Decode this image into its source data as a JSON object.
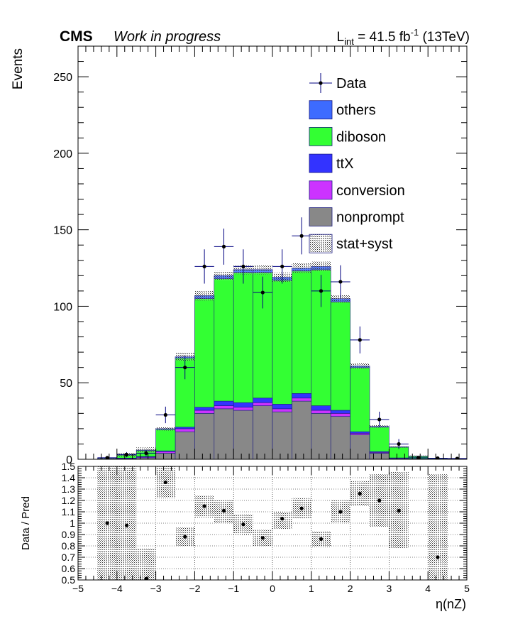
{
  "header": {
    "experiment": "CMS",
    "status": "Work in progress",
    "lumi_prefix": "L",
    "lumi_sub": "int",
    "lumi_value": " = 41.5 fb",
    "lumi_exp": "-1",
    "lumi_energy": " (13TeV)"
  },
  "legend": {
    "entries": [
      {
        "key": "data",
        "label": "Data",
        "color": "#000080"
      },
      {
        "key": "others",
        "label": "others",
        "color": "#3d6bff"
      },
      {
        "key": "diboson",
        "label": "diboson",
        "color": "#33ff33"
      },
      {
        "key": "ttX",
        "label": "ttX",
        "color": "#3333ff"
      },
      {
        "key": "conversion",
        "label": "conversion",
        "color": "#cc33ff"
      },
      {
        "key": "nonprompt",
        "label": "nonprompt",
        "color": "#888888"
      },
      {
        "key": "statsyst",
        "label": "stat+syst",
        "color": "#555555"
      }
    ]
  },
  "chart_data": [
    {
      "type": "bar",
      "stacked": true,
      "ylabel": "Events",
      "xlim": [
        -5,
        5
      ],
      "ylim": [
        0,
        270
      ],
      "y_ticks": [
        0,
        50,
        100,
        150,
        200,
        250
      ],
      "bin_edges": [
        -5,
        -4.5,
        -4,
        -3.5,
        -3,
        -2.5,
        -2,
        -1.5,
        -1,
        -0.5,
        0,
        0.5,
        1,
        1.5,
        2,
        2.5,
        3,
        3.5,
        4,
        4.5,
        5
      ],
      "series": [
        {
          "name": "nonprompt",
          "color": "#888888",
          "values": [
            0,
            0,
            0.5,
            1,
            4,
            18,
            30,
            33,
            32,
            35,
            31,
            38,
            30,
            28,
            16,
            4,
            0.5,
            0.2,
            0,
            0
          ]
        },
        {
          "name": "conversion",
          "color": "#cc33ff",
          "values": [
            0,
            0,
            0.2,
            0.5,
            1,
            2,
            2,
            2,
            2,
            2,
            2,
            2,
            2,
            2,
            1,
            0.5,
            0.2,
            0.1,
            0,
            0
          ]
        },
        {
          "name": "ttX",
          "color": "#3333ff",
          "values": [
            0,
            0,
            0.1,
            0.3,
            0.5,
            1,
            2,
            3,
            3,
            3,
            3,
            3,
            3,
            2,
            1,
            0.5,
            0.2,
            0.1,
            0,
            0
          ]
        },
        {
          "name": "diboson",
          "color": "#33ff33",
          "values": [
            0,
            0.5,
            2,
            4,
            14,
            45,
            71,
            80,
            85,
            82,
            81,
            80,
            89,
            71,
            42,
            16,
            7,
            1.5,
            0.5,
            0.3
          ]
        },
        {
          "name": "others",
          "color": "#3d6bff",
          "values": [
            0,
            0.1,
            0.2,
            0.2,
            0.5,
            1,
            2,
            2,
            2,
            2,
            2,
            2,
            2,
            2,
            1,
            0.5,
            0.3,
            0.2,
            0.1,
            0
          ]
        }
      ],
      "uncertainty": {
        "name": "stat+syst",
        "rel": [
          0.5,
          0.45,
          0.4,
          0.3,
          0.06,
          0.04,
          0.03,
          0.025,
          0.025,
          0.025,
          0.025,
          0.025,
          0.025,
          0.025,
          0.03,
          0.04,
          0.06,
          0.15,
          0.4,
          0.5
        ]
      },
      "data": {
        "name": "Data",
        "x": [
          -4.25,
          -3.75,
          -3.25,
          -2.75,
          -2.25,
          -1.75,
          -1.25,
          -0.75,
          -0.25,
          0.25,
          0.75,
          1.25,
          1.75,
          2.25,
          2.75,
          3.25,
          3.75,
          4.25,
          4.75
        ],
        "y": [
          1,
          3,
          4,
          29,
          60,
          126,
          139,
          126,
          109,
          126,
          146,
          110,
          116,
          78,
          26,
          10,
          1,
          0.7,
          0.5
        ],
        "err": [
          1,
          1.7,
          2,
          5.4,
          7.7,
          11.2,
          11.8,
          11.2,
          10.4,
          11.2,
          12.1,
          10.5,
          10.8,
          8.8,
          5.1,
          3.2,
          1,
          0.8,
          0.7
        ]
      }
    },
    {
      "type": "scatter",
      "ylabel": "Data / Pred",
      "xlabel": "η(nZ)",
      "xlim": [
        -5,
        5
      ],
      "ylim": [
        0.5,
        1.5
      ],
      "x_ticks": [
        -5,
        -4,
        -3,
        -2,
        -1,
        0,
        1,
        2,
        3,
        4,
        5
      ],
      "y_ticks": [
        0.5,
        0.6,
        0.7,
        0.8,
        0.9,
        1,
        1.1,
        1.2,
        1.3,
        1.4,
        1.5
      ],
      "grid": true,
      "points": {
        "x": [
          -4.25,
          -3.75,
          -3.25,
          -2.75,
          -2.25,
          -1.75,
          -1.25,
          -0.75,
          -0.25,
          0.25,
          0.75,
          1.25,
          1.75,
          2.25,
          2.75,
          3.25,
          4.25
        ],
        "y": [
          1.0,
          0.98,
          0.51,
          1.36,
          0.88,
          1.15,
          1.11,
          0.99,
          0.87,
          1.04,
          1.13,
          0.86,
          1.1,
          1.26,
          1.2,
          1.11,
          0.7
        ]
      },
      "band": {
        "x": [
          -4.25,
          -3.75,
          -3.25,
          -2.75,
          -2.25,
          -1.75,
          -1.25,
          -0.75,
          -0.25,
          0.25,
          0.75,
          1.25,
          1.75,
          2.25,
          2.75,
          3.25,
          4.25
        ],
        "lo": [
          0.5,
          0.5,
          0.5,
          1.22,
          0.8,
          1.05,
          1.0,
          0.9,
          0.8,
          0.95,
          1.04,
          0.79,
          1.01,
          1.15,
          0.97,
          0.78,
          0.5
        ],
        "hi": [
          1.5,
          1.5,
          0.78,
          1.5,
          0.96,
          1.24,
          1.2,
          1.08,
          0.94,
          1.1,
          1.22,
          0.93,
          1.2,
          1.37,
          1.43,
          1.45,
          1.43
        ]
      }
    }
  ]
}
